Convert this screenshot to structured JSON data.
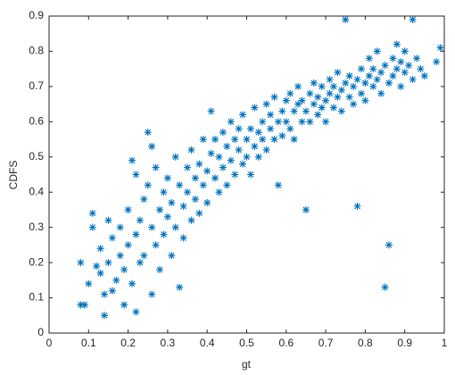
{
  "chart_data": {
    "type": "scatter",
    "xlabel": "gt",
    "ylabel": "CDFS",
    "color": "#0072bd",
    "xlim": [
      0,
      1
    ],
    "ylim": [
      0,
      0.9
    ],
    "xticks": [
      0,
      0.1,
      0.2,
      0.3,
      0.4,
      0.5,
      0.6,
      0.7,
      0.8,
      0.9,
      1
    ],
    "yticks": [
      0,
      0.1,
      0.2,
      0.3,
      0.4,
      0.5,
      0.6,
      0.7,
      0.8,
      0.9
    ],
    "grid": false,
    "x": [
      0.08,
      0.09,
      0.08,
      0.1,
      0.11,
      0.11,
      0.12,
      0.13,
      0.13,
      0.14,
      0.14,
      0.15,
      0.15,
      0.16,
      0.16,
      0.17,
      0.18,
      0.18,
      0.19,
      0.19,
      0.2,
      0.2,
      0.21,
      0.21,
      0.22,
      0.22,
      0.22,
      0.23,
      0.23,
      0.24,
      0.24,
      0.25,
      0.25,
      0.26,
      0.26,
      0.26,
      0.27,
      0.27,
      0.28,
      0.28,
      0.29,
      0.29,
      0.3,
      0.3,
      0.31,
      0.31,
      0.32,
      0.32,
      0.33,
      0.33,
      0.34,
      0.34,
      0.35,
      0.35,
      0.36,
      0.36,
      0.37,
      0.37,
      0.38,
      0.38,
      0.39,
      0.39,
      0.4,
      0.4,
      0.41,
      0.41,
      0.42,
      0.42,
      0.43,
      0.43,
      0.44,
      0.44,
      0.45,
      0.45,
      0.46,
      0.46,
      0.47,
      0.47,
      0.48,
      0.48,
      0.49,
      0.49,
      0.5,
      0.5,
      0.51,
      0.51,
      0.52,
      0.52,
      0.53,
      0.53,
      0.54,
      0.54,
      0.55,
      0.55,
      0.56,
      0.56,
      0.57,
      0.57,
      0.58,
      0.58,
      0.59,
      0.59,
      0.6,
      0.6,
      0.61,
      0.61,
      0.62,
      0.62,
      0.63,
      0.63,
      0.64,
      0.64,
      0.65,
      0.65,
      0.66,
      0.66,
      0.67,
      0.67,
      0.68,
      0.68,
      0.69,
      0.69,
      0.7,
      0.7,
      0.71,
      0.71,
      0.72,
      0.72,
      0.73,
      0.73,
      0.74,
      0.74,
      0.75,
      0.75,
      0.76,
      0.76,
      0.77,
      0.77,
      0.78,
      0.78,
      0.79,
      0.79,
      0.8,
      0.8,
      0.81,
      0.81,
      0.82,
      0.82,
      0.83,
      0.83,
      0.84,
      0.84,
      0.85,
      0.85,
      0.86,
      0.86,
      0.87,
      0.87,
      0.88,
      0.88,
      0.89,
      0.89,
      0.9,
      0.9,
      0.91,
      0.92,
      0.92,
      0.93,
      0.94,
      0.95,
      0.98,
      0.99
    ],
    "values": [
      0.08,
      0.08,
      0.2,
      0.14,
      0.34,
      0.3,
      0.19,
      0.17,
      0.24,
      0.05,
      0.11,
      0.2,
      0.32,
      0.12,
      0.27,
      0.15,
      0.22,
      0.3,
      0.08,
      0.18,
      0.25,
      0.35,
      0.49,
      0.14,
      0.06,
      0.28,
      0.45,
      0.2,
      0.32,
      0.38,
      0.22,
      0.57,
      0.42,
      0.53,
      0.3,
      0.11,
      0.25,
      0.47,
      0.35,
      0.18,
      0.4,
      0.28,
      0.33,
      0.44,
      0.22,
      0.37,
      0.5,
      0.3,
      0.13,
      0.42,
      0.36,
      0.27,
      0.47,
      0.4,
      0.32,
      0.52,
      0.44,
      0.38,
      0.48,
      0.34,
      0.55,
      0.42,
      0.46,
      0.37,
      0.63,
      0.51,
      0.44,
      0.55,
      0.4,
      0.5,
      0.57,
      0.47,
      0.53,
      0.42,
      0.6,
      0.49,
      0.55,
      0.45,
      0.52,
      0.58,
      0.48,
      0.62,
      0.55,
      0.5,
      0.58,
      0.45,
      0.53,
      0.64,
      0.57,
      0.5,
      0.6,
      0.55,
      0.52,
      0.65,
      0.58,
      0.62,
      0.55,
      0.67,
      0.42,
      0.6,
      0.63,
      0.56,
      0.66,
      0.6,
      0.58,
      0.68,
      0.63,
      0.55,
      0.65,
      0.7,
      0.6,
      0.66,
      0.35,
      0.63,
      0.68,
      0.6,
      0.65,
      0.71,
      0.62,
      0.67,
      0.64,
      0.7,
      0.66,
      0.6,
      0.72,
      0.68,
      0.64,
      0.7,
      0.67,
      0.74,
      0.69,
      0.63,
      0.89,
      0.71,
      0.67,
      0.73,
      0.7,
      0.65,
      0.36,
      0.72,
      0.68,
      0.75,
      0.71,
      0.66,
      0.73,
      0.78,
      0.7,
      0.75,
      0.72,
      0.8,
      0.68,
      0.74,
      0.13,
      0.76,
      0.25,
      0.71,
      0.78,
      0.73,
      0.75,
      0.82,
      0.7,
      0.77,
      0.74,
      0.8,
      0.76,
      0.89,
      0.72,
      0.78,
      0.75,
      0.73,
      0.77,
      0.81
    ]
  }
}
